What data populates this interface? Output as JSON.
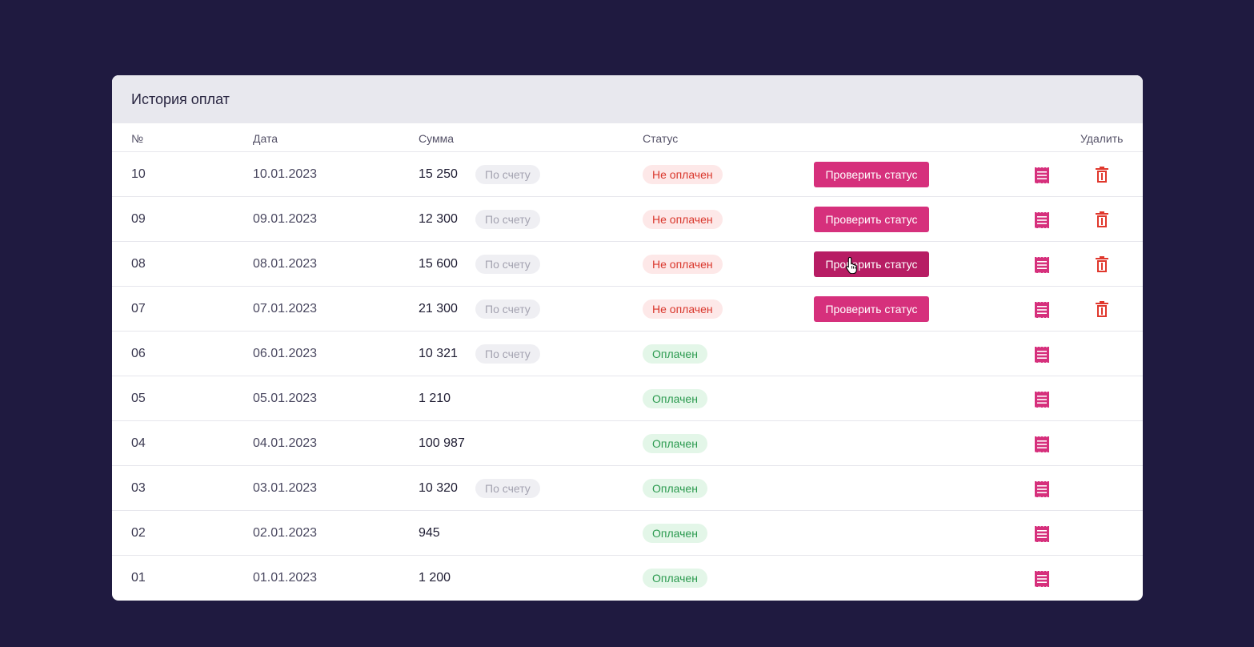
{
  "card": {
    "title": "История оплат"
  },
  "columns": {
    "num": "№",
    "date": "Дата",
    "sum": "Сумма",
    "status": "Статус",
    "delete": "Удалить"
  },
  "check_status_label": "Проверить статус",
  "colors": {
    "accent": "#d6307c",
    "accent_hover": "#b71d64",
    "unpaid": "#d9362b",
    "paid": "#2b9a4f",
    "background": "#1f1a40"
  },
  "rows": [
    {
      "num": "10",
      "date": "10.01.2023",
      "sum": "15 250",
      "tag": "По счету",
      "status": "Не оплачен",
      "paid": false
    },
    {
      "num": "09",
      "date": "09.01.2023",
      "sum": "12 300",
      "tag": "По счету",
      "status": "Не оплачен",
      "paid": false
    },
    {
      "num": "08",
      "date": "08.01.2023",
      "sum": "15 600",
      "tag": "По счету",
      "status": "Не оплачен",
      "paid": false,
      "hover": true
    },
    {
      "num": "07",
      "date": "07.01.2023",
      "sum": "21 300",
      "tag": "По счету",
      "status": "Не оплачен",
      "paid": false
    },
    {
      "num": "06",
      "date": "06.01.2023",
      "sum": "10 321",
      "tag": "По счету",
      "status": "Оплачен",
      "paid": true
    },
    {
      "num": "05",
      "date": "05.01.2023",
      "sum": "1 210",
      "tag": "",
      "status": "Оплачен",
      "paid": true
    },
    {
      "num": "04",
      "date": "04.01.2023",
      "sum": "100 987",
      "tag": "",
      "status": "Оплачен",
      "paid": true
    },
    {
      "num": "03",
      "date": "03.01.2023",
      "sum": "10 320",
      "tag": "По счету",
      "status": "Оплачен",
      "paid": true
    },
    {
      "num": "02",
      "date": "02.01.2023",
      "sum": "945",
      "tag": "",
      "status": "Оплачен",
      "paid": true
    },
    {
      "num": "01",
      "date": "01.01.2023",
      "sum": "1 200",
      "tag": "",
      "status": "Оплачен",
      "paid": true
    }
  ],
  "icons": {
    "document": "receipt-icon",
    "delete": "trash-icon",
    "cursor": "hand-pointer-icon"
  }
}
